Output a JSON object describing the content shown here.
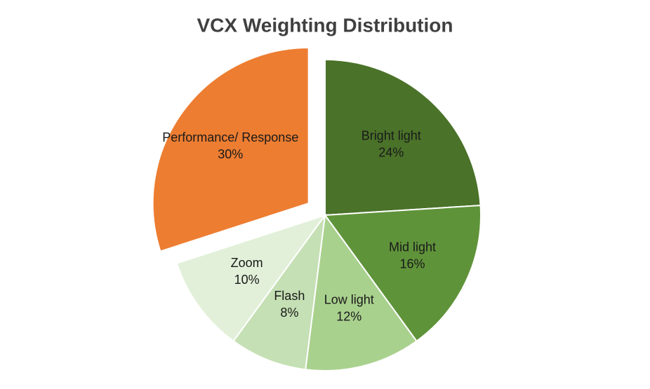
{
  "chart_data": {
    "type": "pie",
    "title": "VCX Weighting Distribution",
    "categories": [
      "Bright light",
      "Mid light",
      "Low light",
      "Flash",
      "Zoom",
      "Performance/ Response"
    ],
    "values": [
      24,
      16,
      12,
      8,
      10,
      30
    ],
    "value_labels": [
      "24%",
      "16%",
      "12%",
      "8%",
      "10%",
      "30%"
    ],
    "colors": [
      "#4a7229",
      "#5f933a",
      "#a9d18e",
      "#c5e0b4",
      "#e2f0d9",
      "#ed7d31"
    ],
    "explode": [
      0,
      0,
      0,
      0,
      0,
      0.13
    ]
  }
}
